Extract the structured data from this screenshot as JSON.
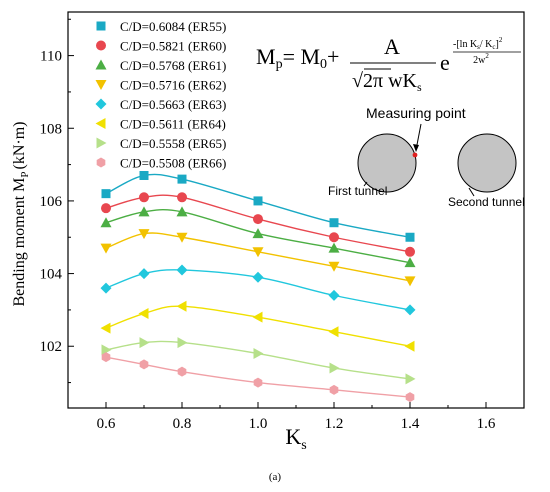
{
  "caption": "(a)",
  "chart_data": {
    "type": "line",
    "xlabel": "K",
    "xlabel_sub": "s",
    "ylabel": "Bending moment M",
    "ylabel_sub": "P",
    "ylabel_unit": "(kN·m)",
    "xlim": [
      0.5,
      1.7
    ],
    "ylim": [
      100.3,
      111.2
    ],
    "xticks": [
      "0.6",
      "0.8",
      "1.0",
      "1.2",
      "1.4",
      "1.6"
    ],
    "yticks": [
      "102",
      "104",
      "106",
      "108",
      "110"
    ],
    "x": [
      0.6,
      0.7,
      0.8,
      1.0,
      1.2,
      1.4
    ],
    "series": [
      {
        "name": "C/D=0.6084 (ER55)",
        "marker": "square",
        "color": "#1aa9c4",
        "values": [
          106.2,
          106.7,
          106.6,
          106.0,
          105.4,
          105.0
        ]
      },
      {
        "name": "C/D=0.5821 (ER60)",
        "marker": "circle",
        "color": "#e8474f",
        "values": [
          105.8,
          106.1,
          106.1,
          105.5,
          105.0,
          104.6
        ]
      },
      {
        "name": "C/D=0.5768 (ER61)",
        "marker": "triangle-up",
        "color": "#4cae44",
        "values": [
          105.4,
          105.7,
          105.7,
          105.1,
          104.7,
          104.3
        ]
      },
      {
        "name": "C/D=0.5716 (ER62)",
        "marker": "triangle-down",
        "color": "#f2c200",
        "values": [
          104.7,
          105.1,
          105.0,
          104.6,
          104.2,
          103.8
        ]
      },
      {
        "name": "C/D=0.5663 (ER63)",
        "marker": "diamond",
        "color": "#21c7dd",
        "values": [
          103.6,
          104.0,
          104.1,
          103.9,
          103.4,
          103.0
        ]
      },
      {
        "name": "C/D=0.5611 (ER64)",
        "marker": "triangle-left",
        "color": "#f0e000",
        "values": [
          102.5,
          102.9,
          103.1,
          102.8,
          102.4,
          102.0
        ]
      },
      {
        "name": "C/D=0.5558 (ER65)",
        "marker": "triangle-right",
        "color": "#b6e08a",
        "values": [
          101.9,
          102.1,
          102.1,
          101.8,
          101.4,
          101.1
        ]
      },
      {
        "name": "C/D=0.5508 (ER66)",
        "marker": "hexagon",
        "color": "#f0a0a6",
        "values": [
          101.7,
          101.5,
          101.3,
          101.0,
          100.8,
          100.6
        ]
      }
    ],
    "legend_position": "top-left",
    "grid": false
  },
  "formula": {
    "lhs_main": "M",
    "lhs_sub": "p",
    "eq_prefix": "= M",
    "m0_sub": "0",
    "plus": "+",
    "numerator": "A",
    "sqrt_symbol": "√",
    "sqrt_content": "2π",
    "denominator_tail": " wK",
    "denominator_sub": "s",
    "exp_base": "e",
    "exp_numerator": "-[ln K",
    "exp_k_sub1": "s",
    "exp_slash": "/ K",
    "exp_k_sub2": "c",
    "exp_close": "]",
    "exp_power": "2",
    "exp_denominator": "2w",
    "exp_den_power": "2"
  },
  "inset": {
    "measuring_point_label": "Measuring point",
    "first_tunnel_label": "First tunnel",
    "second_tunnel_label": "Second tunnel",
    "tunnel_fill": "#c4c4c4",
    "point_color": "#e02020"
  }
}
